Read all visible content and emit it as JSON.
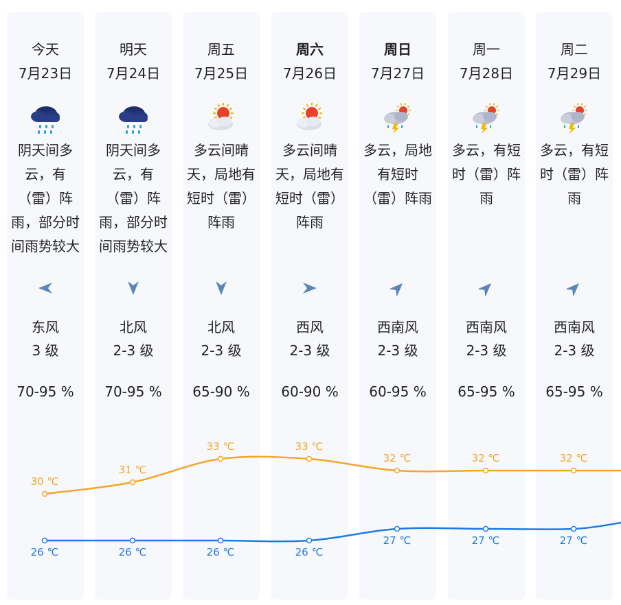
{
  "days": [
    {
      "day": "今天",
      "date": "7月23日",
      "bold": false,
      "icon": "heavy-rain-cloud-icon",
      "desc": [
        "阴天间多",
        "云，有",
        "（雷）阵",
        "雨，部分时",
        "间雨势较大"
      ],
      "wind_dir": "东风",
      "wind_level": "3 级",
      "wind_arrow": "arrow-left-icon",
      "humidity": "70-95 %",
      "high": "30 ℃",
      "low": "26 ℃",
      "high_v": 30,
      "low_v": 26
    },
    {
      "day": "明天",
      "date": "7月24日",
      "bold": false,
      "icon": "heavy-rain-cloud-icon",
      "desc": [
        "阴天间多",
        "云，有",
        "（雷）阵",
        "雨，部分时",
        "间雨势较大"
      ],
      "wind_dir": "北风",
      "wind_level": "2-3 级",
      "wind_arrow": "arrow-down-icon",
      "humidity": "70-95 %",
      "high": "31 ℃",
      "low": "26 ℃",
      "high_v": 31,
      "low_v": 26
    },
    {
      "day": "周五",
      "date": "7月25日",
      "bold": false,
      "icon": "sun-cloud-icon",
      "desc": [
        "多云间晴",
        "天，局地有",
        "短时（雷）",
        "阵雨"
      ],
      "wind_dir": "北风",
      "wind_level": "2-3 级",
      "wind_arrow": "arrow-down-icon",
      "humidity": "65-90 %",
      "high": "33 ℃",
      "low": "26 ℃",
      "high_v": 33,
      "low_v": 26
    },
    {
      "day": "周六",
      "date": "7月26日",
      "bold": true,
      "icon": "sun-cloud-icon",
      "desc": [
        "多云间晴",
        "天，局地有",
        "短时（雷）",
        "阵雨"
      ],
      "wind_dir": "西风",
      "wind_level": "2-3 级",
      "wind_arrow": "arrow-right-icon",
      "humidity": "60-90 %",
      "high": "33 ℃",
      "low": "26 ℃",
      "high_v": 33,
      "low_v": 26
    },
    {
      "day": "周日",
      "date": "7月27日",
      "bold": true,
      "icon": "thunder-shower-icon",
      "desc": [
        "多云，局地",
        "有短时",
        "（雷）阵雨"
      ],
      "wind_dir": "西南风",
      "wind_level": "2-3 级",
      "wind_arrow": "arrow-northeast-icon",
      "humidity": "60-95 %",
      "high": "32 ℃",
      "low": "27 ℃",
      "high_v": 32,
      "low_v": 27
    },
    {
      "day": "周一",
      "date": "7月28日",
      "bold": false,
      "icon": "thunder-shower-icon",
      "desc": [
        "多云，有短",
        "时（雷）阵",
        "雨"
      ],
      "wind_dir": "西南风",
      "wind_level": "2-3 级",
      "wind_arrow": "arrow-northeast-icon",
      "humidity": "65-95 %",
      "high": "32 ℃",
      "low": "27 ℃",
      "high_v": 32,
      "low_v": 27
    },
    {
      "day": "周二",
      "date": "7月29日",
      "bold": false,
      "icon": "thunder-shower-icon",
      "desc": [
        "多云，有短",
        "时（雷）阵",
        "雨"
      ],
      "wind_dir": "西南风",
      "wind_level": "2-3 级",
      "wind_arrow": "arrow-northeast-icon",
      "humidity": "65-95 %",
      "high": "32 ℃",
      "low": "27 ℃",
      "high_v": 32,
      "low_v": 27
    }
  ],
  "colors": {
    "high_line": "#f5a623",
    "low_line": "#1e7be0",
    "card_bg": "#f7f8fc",
    "icon_arrow": "#5b87b8"
  }
}
